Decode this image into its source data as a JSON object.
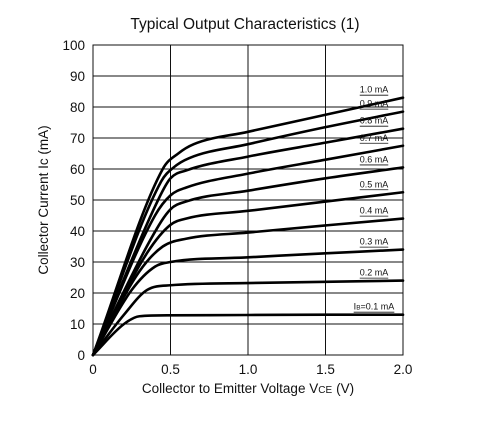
{
  "chart_data": {
    "type": "line",
    "title": "Typical Output Characteristics (1)",
    "xlabel": "Collector to Emitter Voltage V",
    "xlabel_sub": "CE",
    "xlabel_unit": "(V)",
    "ylabel": "Collector Current Ic (mA)",
    "xlim": [
      0,
      2.0
    ],
    "ylim": [
      0,
      100
    ],
    "x_ticks": [
      0,
      0.5,
      1.0,
      1.5,
      2.0
    ],
    "x_tick_labels": [
      "0",
      "0.5",
      "1.0",
      "1.5",
      "2.0"
    ],
    "y_ticks": [
      0,
      10,
      20,
      30,
      40,
      50,
      60,
      70,
      80,
      90,
      100
    ],
    "y_tick_labels": [
      "0",
      "10",
      "20",
      "30",
      "40",
      "50",
      "60",
      "70",
      "80",
      "90",
      "100"
    ],
    "grid": true,
    "series": [
      {
        "name": "IB=0.1 mA",
        "label_prefix": "I",
        "label_sub": "B",
        "label_suffix": "=0.1 mA",
        "values_at": [
          0,
          0.2,
          0.3,
          0.5,
          1.0,
          1.5,
          2.0
        ],
        "values": [
          0,
          10,
          12.5,
          12.8,
          12.9,
          13.0,
          13.0
        ]
      },
      {
        "name": "0.2 mA",
        "values_at": [
          0,
          0.2,
          0.35,
          0.5,
          1.0,
          1.5,
          2.0
        ],
        "values": [
          0,
          13,
          21,
          22.5,
          23.2,
          23.6,
          24
        ]
      },
      {
        "name": "0.3 mA",
        "values_at": [
          0,
          0.25,
          0.4,
          0.5,
          1.0,
          1.5,
          2.0
        ],
        "values": [
          0,
          21,
          28.5,
          30,
          31.5,
          32.8,
          34
        ]
      },
      {
        "name": "0.4 mA",
        "values_at": [
          0,
          0.3,
          0.45,
          0.6,
          1.0,
          1.5,
          2.0
        ],
        "values": [
          0,
          27,
          35,
          37.5,
          39.5,
          41.8,
          44
        ]
      },
      {
        "name": "0.5 mA",
        "values_at": [
          0,
          0.35,
          0.5,
          0.6,
          1.0,
          1.5,
          2.0
        ],
        "values": [
          0,
          33,
          42,
          44,
          46.5,
          49.5,
          52.5
        ]
      },
      {
        "name": "0.6 mA",
        "values_at": [
          0,
          0.38,
          0.5,
          0.6,
          1.0,
          1.5,
          2.0
        ],
        "values": [
          0,
          38,
          47,
          49.5,
          53,
          57,
          60.5
        ]
      },
      {
        "name": "0.7 mA",
        "values_at": [
          0,
          0.4,
          0.5,
          0.6,
          1.0,
          1.5,
          2.0
        ],
        "values": [
          0,
          45,
          51.5,
          54,
          58.5,
          63,
          67.5
        ]
      },
      {
        "name": "0.8 mA",
        "values_at": [
          0,
          0.42,
          0.5,
          0.6,
          1.0,
          1.5,
          2.0
        ],
        "values": [
          0,
          50,
          57,
          59.5,
          64,
          68.5,
          73
        ]
      },
      {
        "name": "0.9 mA",
        "values_at": [
          0,
          0.44,
          0.52,
          0.62,
          1.0,
          1.5,
          2.0
        ],
        "values": [
          0,
          56,
          60.5,
          63.5,
          68,
          73.5,
          78.5
        ]
      },
      {
        "name": "1.0 mA",
        "values_at": [
          0,
          0.45,
          0.55,
          0.65,
          1.0,
          1.5,
          2.0
        ],
        "values": [
          0,
          60,
          65,
          68,
          72,
          77.5,
          83
        ]
      }
    ]
  }
}
